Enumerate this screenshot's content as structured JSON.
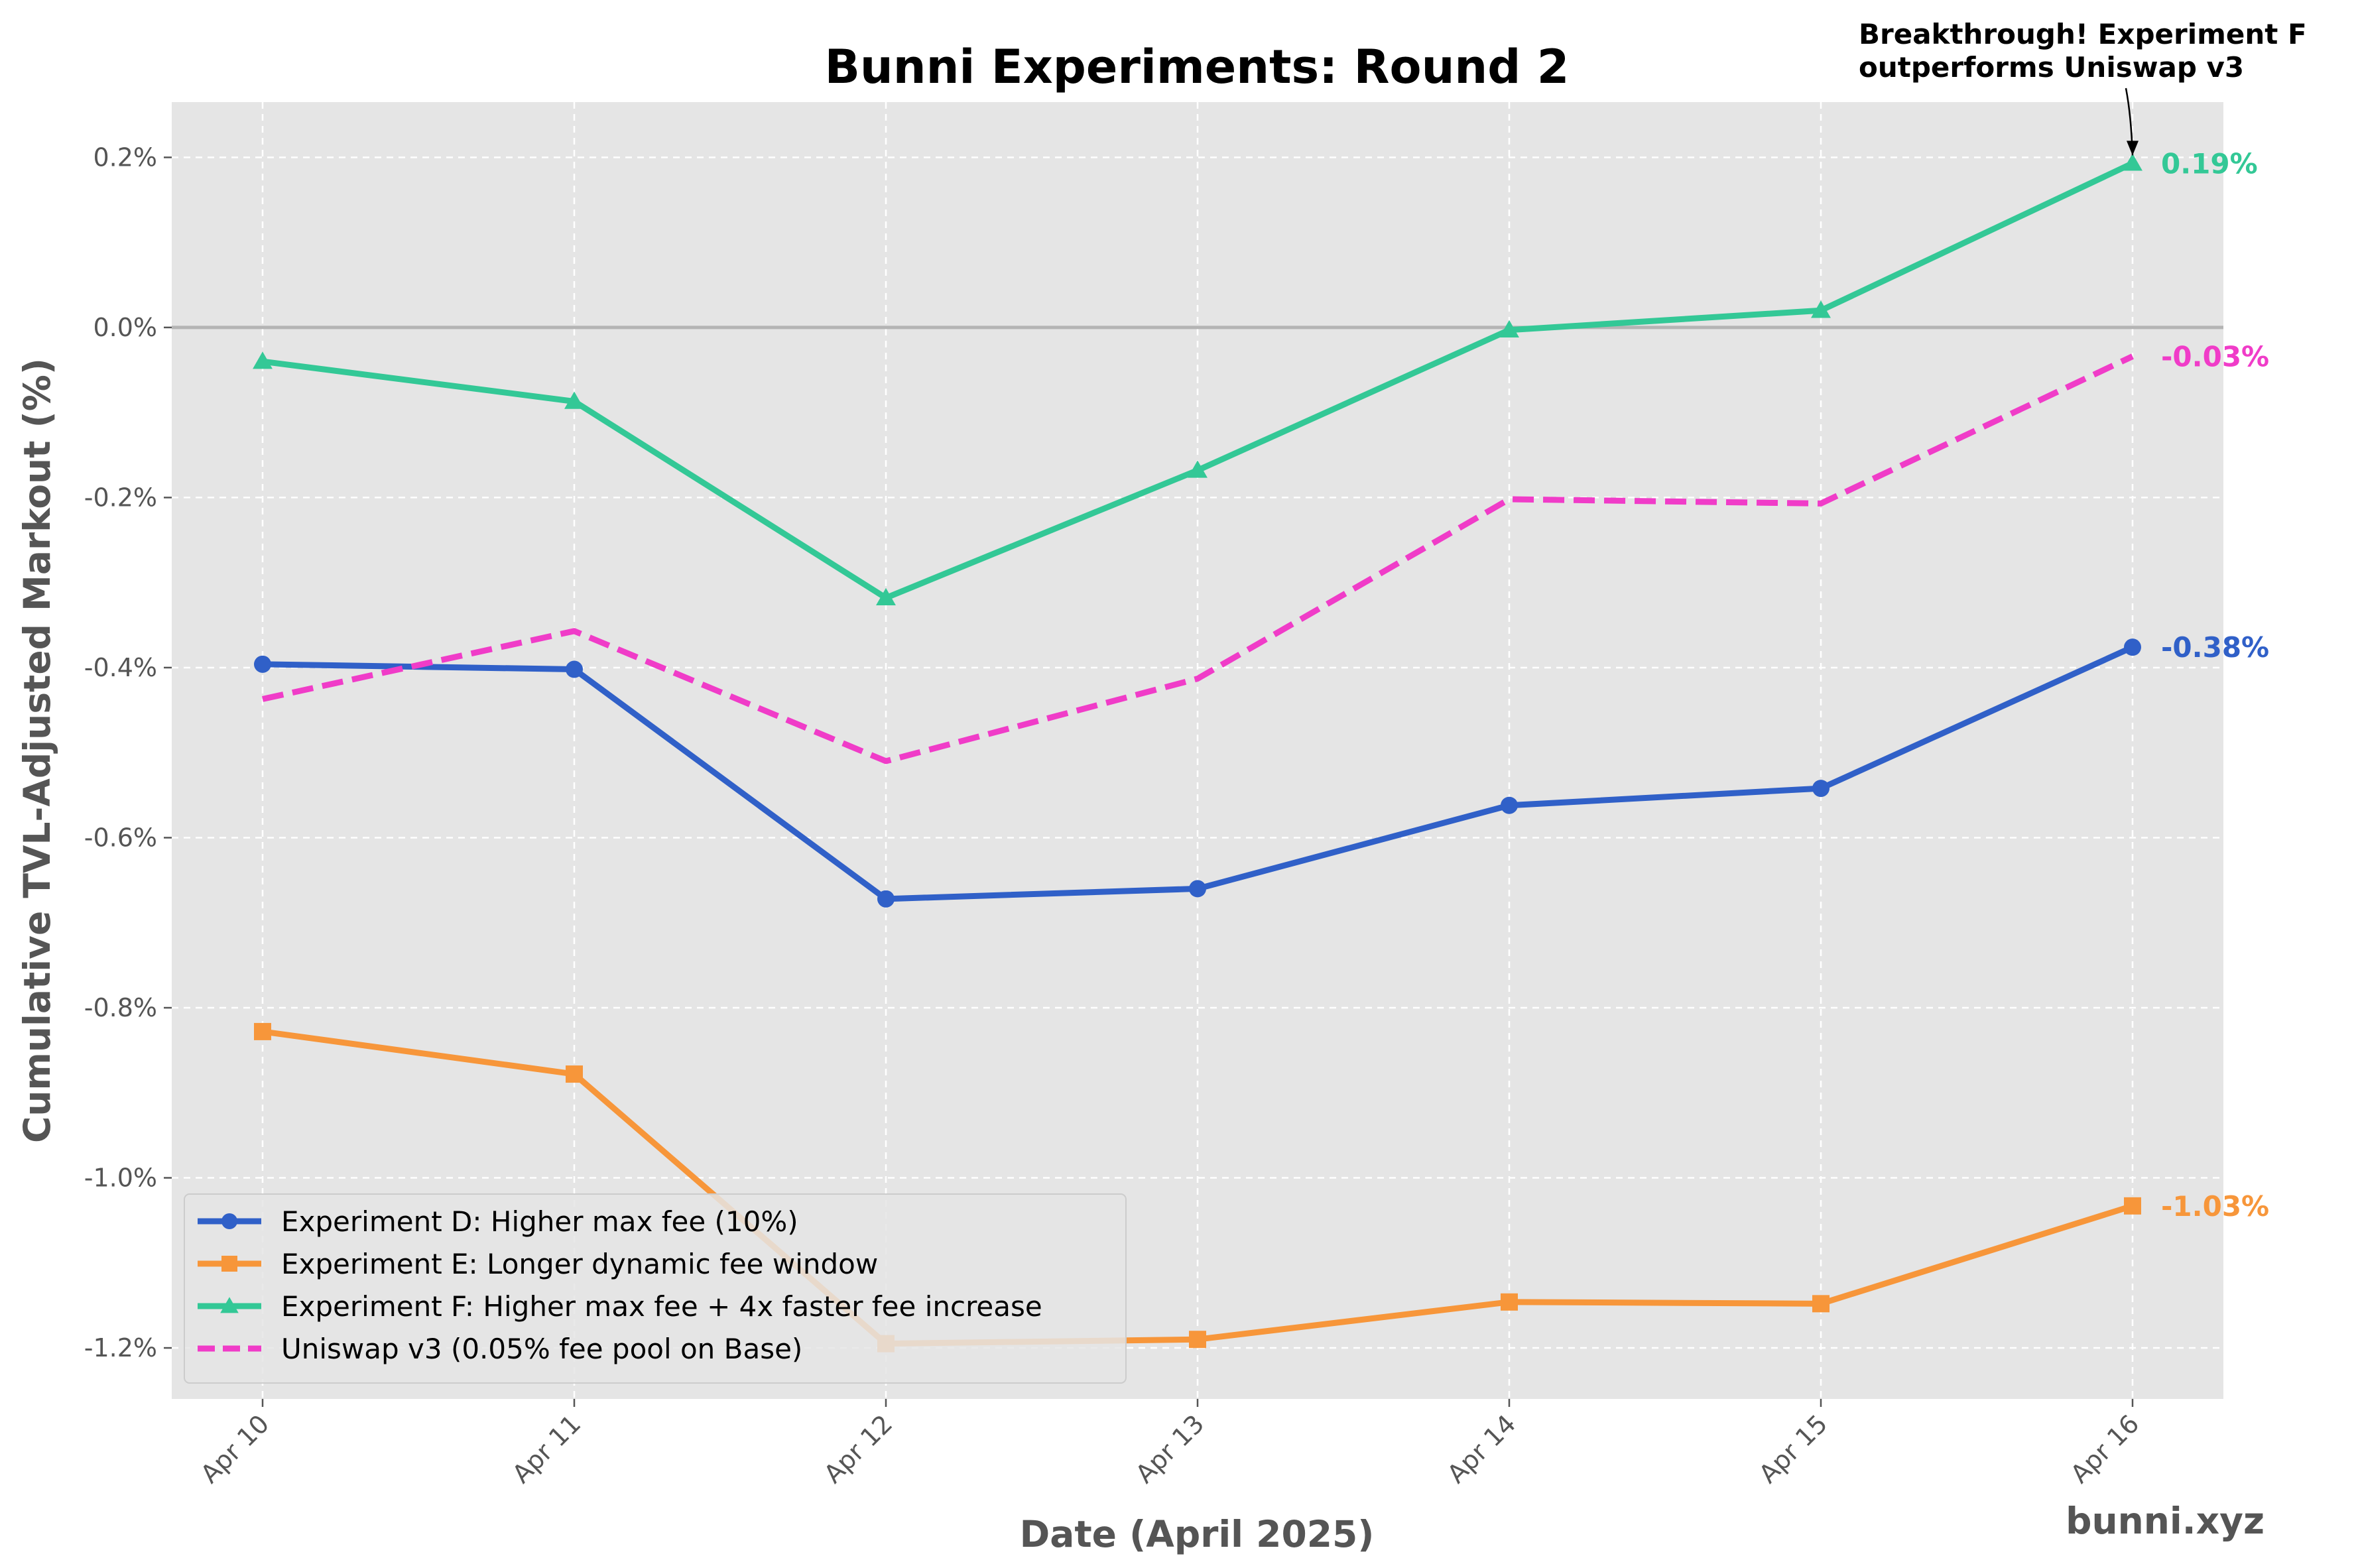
{
  "chart_data": {
    "type": "line",
    "title": "Bunni Experiments: Round 2",
    "xlabel": "Date (April 2025)",
    "ylabel": "Cumulative TVL-Adjusted Markout (%)",
    "categories": [
      "Apr 10",
      "Apr 11",
      "Apr 12",
      "Apr 13",
      "Apr 14",
      "Apr 15",
      "Apr 16"
    ],
    "yticks": [
      0.2,
      0.0,
      -0.2,
      -0.4,
      -0.6,
      -0.8,
      -1.0,
      -1.2
    ],
    "ytick_labels": [
      "0.2%",
      "0.0%",
      "-0.2%",
      "-0.4%",
      "-0.6%",
      "-0.8%",
      "-1.0%",
      "-1.2%"
    ],
    "ylim": [
      -1.26,
      0.265
    ],
    "grid": true,
    "legend_position": "lower-left",
    "reference_line": 0.0,
    "series": [
      {
        "name": "Experiment D: Higher max fee (10%)",
        "values": [
          -0.396,
          -0.402,
          -0.672,
          -0.66,
          -0.562,
          -0.542,
          -0.376
        ],
        "color": "#3060c8",
        "marker": "circle",
        "style": "solid",
        "end_label": "-0.38%"
      },
      {
        "name": "Experiment E: Longer dynamic fee window",
        "values": [
          -0.828,
          -0.878,
          -1.195,
          -1.19,
          -1.146,
          -1.148,
          -1.033
        ],
        "color": "#f7963a",
        "marker": "square",
        "style": "solid",
        "end_label": "-1.03%"
      },
      {
        "name": "Experiment F: Higher max fee + 4x faster fee increase",
        "values": [
          -0.04,
          -0.087,
          -0.318,
          -0.168,
          -0.003,
          0.02,
          0.193
        ],
        "color": "#33c896",
        "marker": "triangle",
        "style": "solid",
        "end_label": "0.19%"
      },
      {
        "name": "Uniswap v3 (0.05% fee pool on Base)",
        "values": [
          -0.437,
          -0.357,
          -0.51,
          -0.413,
          -0.202,
          -0.207,
          -0.034
        ],
        "color": "#f03cc8",
        "marker": "none",
        "style": "dashed",
        "end_label": "-0.03%"
      }
    ],
    "annotation": {
      "lines": [
        "Breakthrough! Experiment F",
        "outperforms Uniswap v3"
      ],
      "target_category": "Apr 16",
      "target_series": "Experiment F: Higher max fee + 4x faster fee increase"
    }
  },
  "watermark": "bunni.xyz",
  "colors": {
    "plot_background": "#e5e5e5",
    "grid": "#ffffff",
    "zero_line": "#b4b4b4"
  }
}
